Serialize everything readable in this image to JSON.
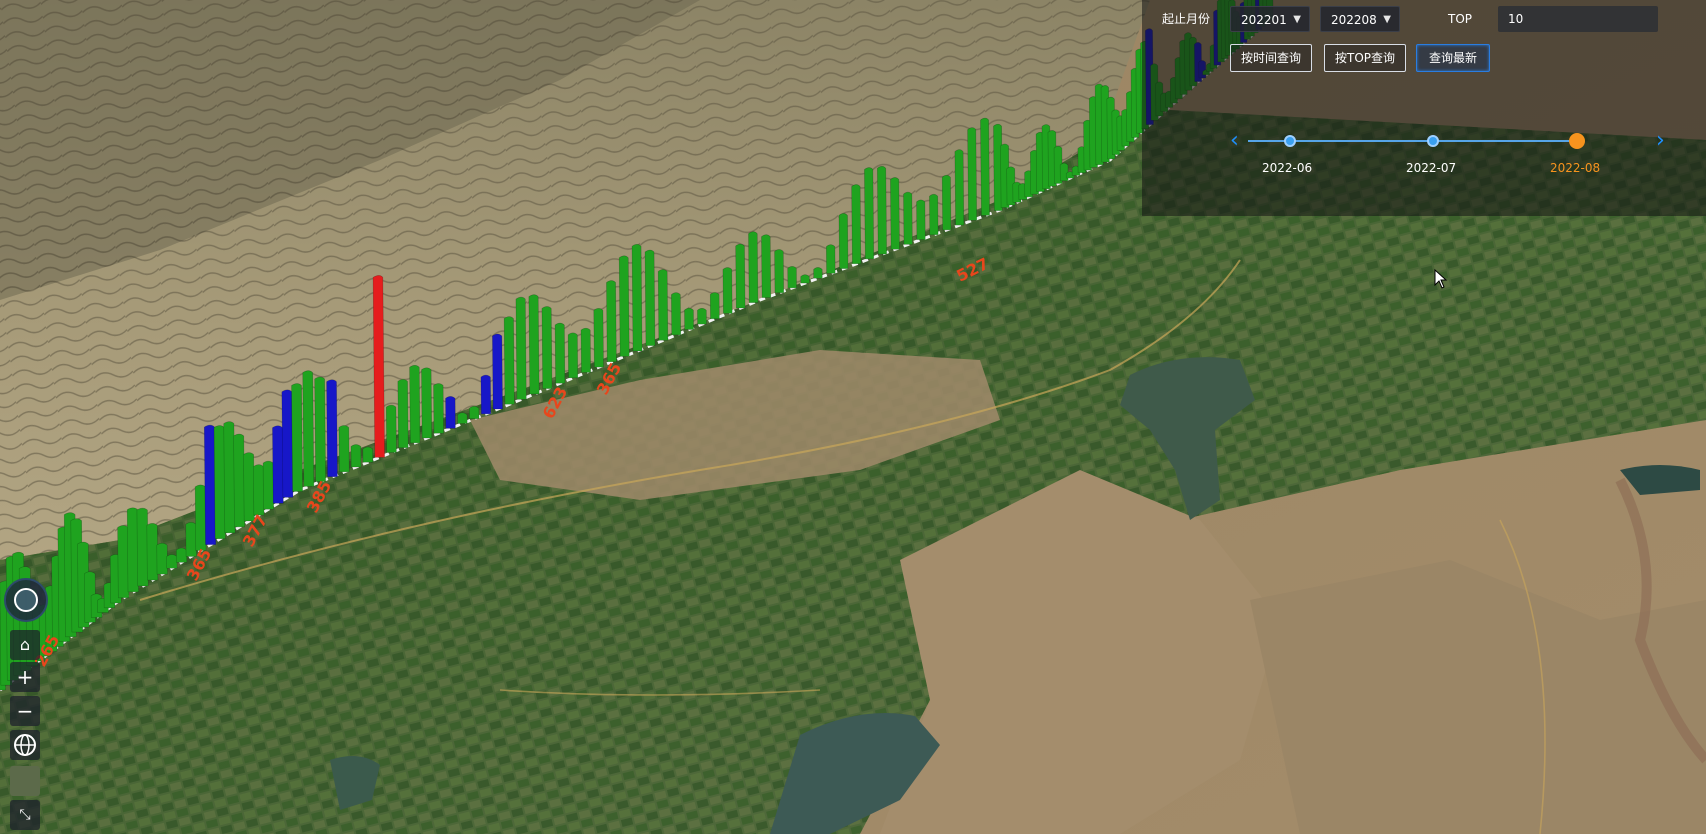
{
  "panel": {
    "start_label": "起止月份",
    "start_value": "202201",
    "end_value": "202208",
    "top_label": "TOP",
    "top_value": "10",
    "buttons": {
      "by_time": "按时间查询",
      "by_top": "按TOP查询",
      "latest": "查询最新"
    },
    "timeline": [
      {
        "label": "2022-06",
        "active": false
      },
      {
        "label": "2022-07",
        "active": false
      },
      {
        "label": "2022-08",
        "active": true
      }
    ]
  },
  "map_tools": {
    "home_icon": "home-icon",
    "zoom_in": "+",
    "zoom_out": "−",
    "globe_icon": "globe-icon",
    "basemap_icon": "basemap-icon",
    "fullscreen_icon": "fullscreen-icon"
  },
  "colors": {
    "bar_green": "#1fa31f",
    "bar_blue": "#1717c8",
    "bar_red": "#e51d1d",
    "accent": "#2a7de1",
    "timeline_active": "#f7931e"
  },
  "map_labels": [
    "265",
    "365",
    "377",
    "385",
    "623",
    "365",
    "527"
  ]
}
